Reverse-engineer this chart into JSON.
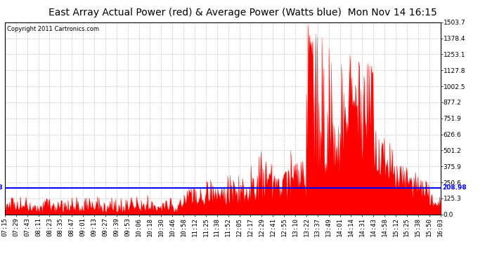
{
  "title": "East Array Actual Power (red) & Average Power (Watts blue)  Mon Nov 14 16:15",
  "copyright": "Copyright 2011 Cartronics.com",
  "avg_power": 208.98,
  "ymax": 1503.7,
  "ymin": 0.0,
  "yticks": [
    0.0,
    125.3,
    250.6,
    375.9,
    501.2,
    626.6,
    751.9,
    877.2,
    1002.5,
    1127.8,
    1253.1,
    1378.4,
    1503.7
  ],
  "bar_color": "#FF0000",
  "avg_line_color": "#0000FF",
  "grid_color": "#C8C8C8",
  "background_color": "#FFFFFF",
  "title_fontsize": 10,
  "tick_fontsize": 6.5,
  "x_labels": [
    "07:15",
    "07:29",
    "07:43",
    "08:11",
    "08:23",
    "08:35",
    "08:47",
    "09:01",
    "09:13",
    "09:27",
    "09:39",
    "09:53",
    "10:06",
    "10:18",
    "10:30",
    "10:46",
    "10:58",
    "11:12",
    "11:25",
    "11:38",
    "11:52",
    "12:05",
    "12:17",
    "12:29",
    "12:41",
    "12:55",
    "13:10",
    "13:22",
    "13:37",
    "13:49",
    "14:01",
    "14:14",
    "14:31",
    "14:43",
    "14:58",
    "15:12",
    "15:25",
    "15:38",
    "15:50",
    "16:03"
  ]
}
